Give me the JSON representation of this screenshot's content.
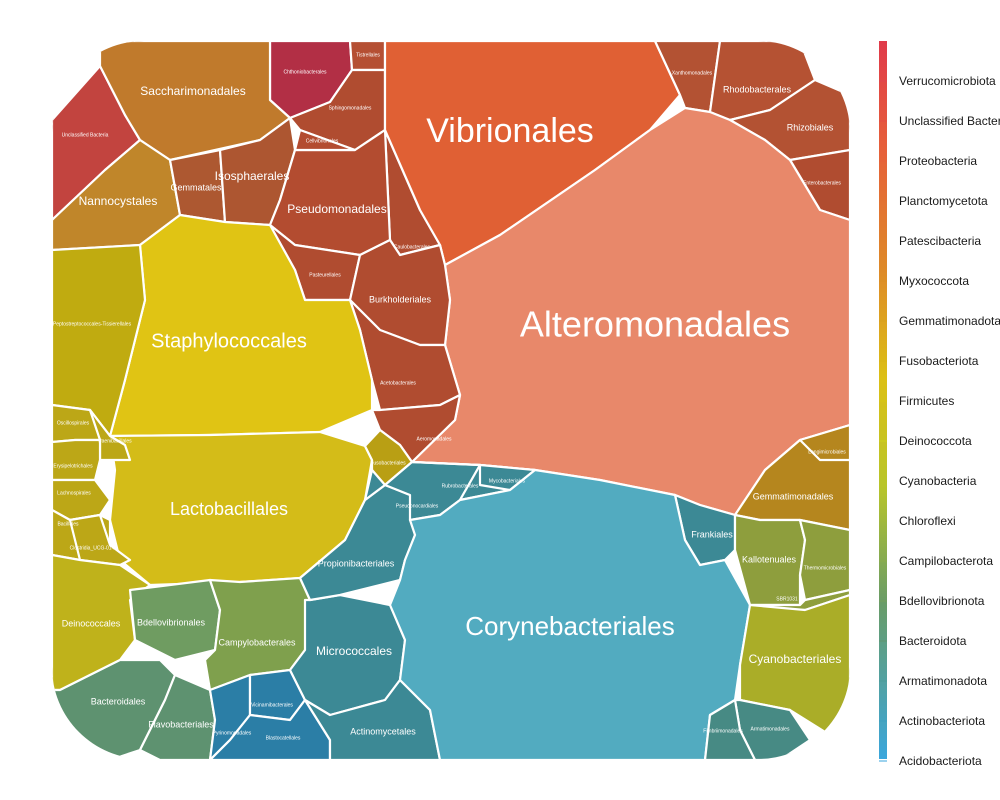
{
  "chart_data": {
    "type": "voronoi_treemap",
    "title": "",
    "legend": {
      "placement": "right",
      "entries": [
        {
          "label": "Verrucomicrobiota",
          "color": "#e0444f"
        },
        {
          "label": "Unclassified Bacteria",
          "color": "#e44c44"
        },
        {
          "label": "Proteobacteria",
          "color": "#e6603a"
        },
        {
          "label": "Planctomycetota",
          "color": "#e27132"
        },
        {
          "label": "Patescibacteria",
          "color": "#de802b"
        },
        {
          "label": "Myxococcota",
          "color": "#d98f23"
        },
        {
          "label": "Gemmatimonadota",
          "color": "#d6a01c"
        },
        {
          "label": "Fusobacteriota",
          "color": "#d8b515"
        },
        {
          "label": "Firmicutes",
          "color": "#d7c713"
        },
        {
          "label": "Deinococcota",
          "color": "#cdd01a"
        },
        {
          "label": "Cyanobacteria",
          "color": "#b8c52a"
        },
        {
          "label": "Chloroflexi",
          "color": "#a2b93a"
        },
        {
          "label": "Campilobacterota",
          "color": "#8cac4b"
        },
        {
          "label": "Bdellovibrionota",
          "color": "#76a05c"
        },
        {
          "label": "Bacteroidota",
          "color": "#60946e"
        },
        {
          "label": "Armatimonadota",
          "color": "#4a9a99"
        },
        {
          "label": "Actinobacteriota",
          "color": "#3d9fc0"
        },
        {
          "label": "Acidobacteriota",
          "color": "#3aa6dc"
        }
      ]
    },
    "cells": [
      {
        "label": "Chthoniobacterales",
        "color": "#b22f45",
        "size": "xs"
      },
      {
        "label": "Unclassified Bacteria",
        "color": "#c2443f",
        "size": "xs"
      },
      {
        "label": "Saccharimonadales",
        "color": "#c07a2c",
        "size": "m"
      },
      {
        "label": "Nannocystales",
        "color": "#c0862a",
        "size": "m"
      },
      {
        "label": "Gemmatales",
        "color": "#ad5831",
        "size": "s"
      },
      {
        "label": "Isosphaerales",
        "color": "#ad5631",
        "size": "m"
      },
      {
        "label": "Tistrellales",
        "color": "#b54f33",
        "size": "xs"
      },
      {
        "label": "Sphingomonadales",
        "color": "#b04c30",
        "size": "xs"
      },
      {
        "label": "Caulobacterales",
        "color": "#b04c30",
        "size": "xs"
      },
      {
        "label": "Pseudomonadales",
        "color": "#b34c30",
        "size": "m"
      },
      {
        "label": "Cellvibrionales",
        "color": "#b34c30",
        "size": "xs"
      },
      {
        "label": "Vibrionales",
        "color": "#e06034",
        "size": "xl"
      },
      {
        "label": "Xanthomonadales",
        "color": "#b35233",
        "size": "xs"
      },
      {
        "label": "Rhodobacterales",
        "color": "#b55233",
        "size": "s"
      },
      {
        "label": "Rhizobiales",
        "color": "#b35233",
        "size": "s"
      },
      {
        "label": "Enterobacterales",
        "color": "#b04c30",
        "size": "xs"
      },
      {
        "label": "Alteromonadales",
        "color": "#e8886a",
        "size": "xl"
      },
      {
        "label": "Pasteurellales",
        "color": "#b04c30",
        "size": "xs"
      },
      {
        "label": "Burkholderiales",
        "color": "#b04c30",
        "size": "s"
      },
      {
        "label": "Acetobacterales",
        "color": "#b04c30",
        "size": "xs"
      },
      {
        "label": "Aeromonadales",
        "color": "#b04c30",
        "size": "xs"
      },
      {
        "label": "Staphylococcales",
        "color": "#e0c414",
        "size": "l"
      },
      {
        "label": "Lactobacillales",
        "color": "#d4bc18",
        "size": "l"
      },
      {
        "label": "Peptostreptococcales-Tissierellales",
        "color": "#c0ab10",
        "size": "xs"
      },
      {
        "label": "Oscillospirales",
        "color": "#bca717",
        "size": "xs"
      },
      {
        "label": "Paenibacillales",
        "color": "#bca717",
        "size": "xs"
      },
      {
        "label": "Erysipelotrichales",
        "color": "#bca717",
        "size": "xs"
      },
      {
        "label": "Lachnospirales",
        "color": "#bca717",
        "size": "xs"
      },
      {
        "label": "Bacillales",
        "color": "#bca717",
        "size": "xs"
      },
      {
        "label": "Clostridia_UCG-014",
        "color": "#bca717",
        "size": "xs"
      },
      {
        "label": "Fusobacteriales",
        "color": "#b99f14",
        "size": "xs"
      },
      {
        "label": "Deinococcales",
        "color": "#bfb21b",
        "size": "s"
      },
      {
        "label": "Bdellovibrionales",
        "color": "#6f9c61",
        "size": "s"
      },
      {
        "label": "Campylobacterales",
        "color": "#7fa04d",
        "size": "s"
      },
      {
        "label": "Bacteroidales",
        "color": "#5e9270",
        "size": "s"
      },
      {
        "label": "Flavobacteriales",
        "color": "#5e9270",
        "size": "s"
      },
      {
        "label": "Pyrinomonadales",
        "color": "#2b7ea6",
        "size": "xs"
      },
      {
        "label": "Vicinamibacterales",
        "color": "#2b7ea6",
        "size": "xs"
      },
      {
        "label": "Blastocatellales",
        "color": "#2b7ea6",
        "size": "xs"
      },
      {
        "label": "Micrococcales",
        "color": "#3c8995",
        "size": "m"
      },
      {
        "label": "Propionibacteriales",
        "color": "#3c8995",
        "size": "s"
      },
      {
        "label": "Actinomycetales",
        "color": "#3c8995",
        "size": "s"
      },
      {
        "label": "Pseudonocardiales",
        "color": "#3c8995",
        "size": "xs"
      },
      {
        "label": "Rubrobacterales",
        "color": "#3c8995",
        "size": "xs"
      },
      {
        "label": "Mycobacteriales",
        "color": "#3c8995",
        "size": "xs"
      },
      {
        "label": "Frankiales",
        "color": "#3c8995",
        "size": "s"
      },
      {
        "label": "Corynebacteriales",
        "color": "#52abc0",
        "size": "xl"
      },
      {
        "label": "Gemmatimonadales",
        "color": "#b5861e",
        "size": "s"
      },
      {
        "label": "Longimicrobiales",
        "color": "#b5861e",
        "size": "xs"
      },
      {
        "label": "Kallotenuales",
        "color": "#8e9e3d",
        "size": "s"
      },
      {
        "label": "Thermomicrobiales",
        "color": "#8e9e3d",
        "size": "xs"
      },
      {
        "label": "SBR1031",
        "color": "#8e9e3d",
        "size": "xs"
      },
      {
        "label": "Cyanobacteriales",
        "color": "#aaad28",
        "size": "m"
      },
      {
        "label": "Armatimonadales",
        "color": "#478a84",
        "size": "xs"
      },
      {
        "label": "Fimbriimonadales",
        "color": "#478a84",
        "size": "xs"
      }
    ]
  }
}
